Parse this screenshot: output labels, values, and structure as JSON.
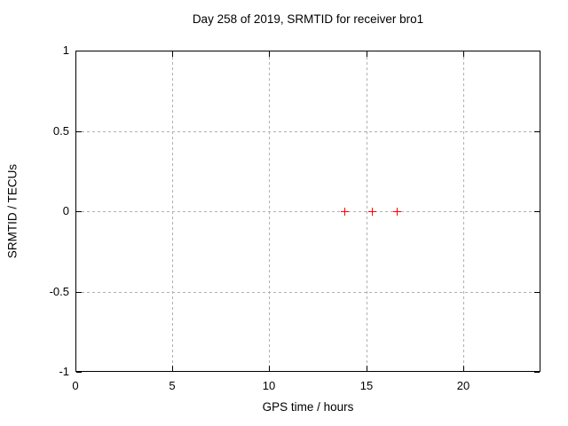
{
  "chart_data": {
    "type": "scatter",
    "title": "Day 258 of 2019, SRMTID for receiver bro1",
    "xlabel": "GPS time / hours",
    "ylabel": "SRMTID / TECUs",
    "xlim": [
      0,
      24
    ],
    "ylim": [
      -1,
      1
    ],
    "x_ticks": [
      0,
      5,
      10,
      15,
      20
    ],
    "x_tick_labels": [
      "0",
      "5",
      "10",
      "15",
      "20"
    ],
    "y_ticks": [
      -1,
      -0.5,
      0,
      0.5,
      1
    ],
    "y_tick_labels": [
      "-1",
      "-0.5",
      "0",
      "0.5",
      "1"
    ],
    "grid": true,
    "legend": "none",
    "series": [
      {
        "name": "SRMTID",
        "marker": "plus",
        "color": "#ff0000",
        "points": [
          {
            "x": 13.9,
            "y": 0.0
          },
          {
            "x": 15.3,
            "y": 0.0
          },
          {
            "x": 16.6,
            "y": 0.0
          }
        ]
      }
    ],
    "colors": {
      "background": "#ffffff",
      "frame": "#000000",
      "grid": "#b0b0b0",
      "text": "#000000",
      "marker": "#ff0000"
    }
  }
}
